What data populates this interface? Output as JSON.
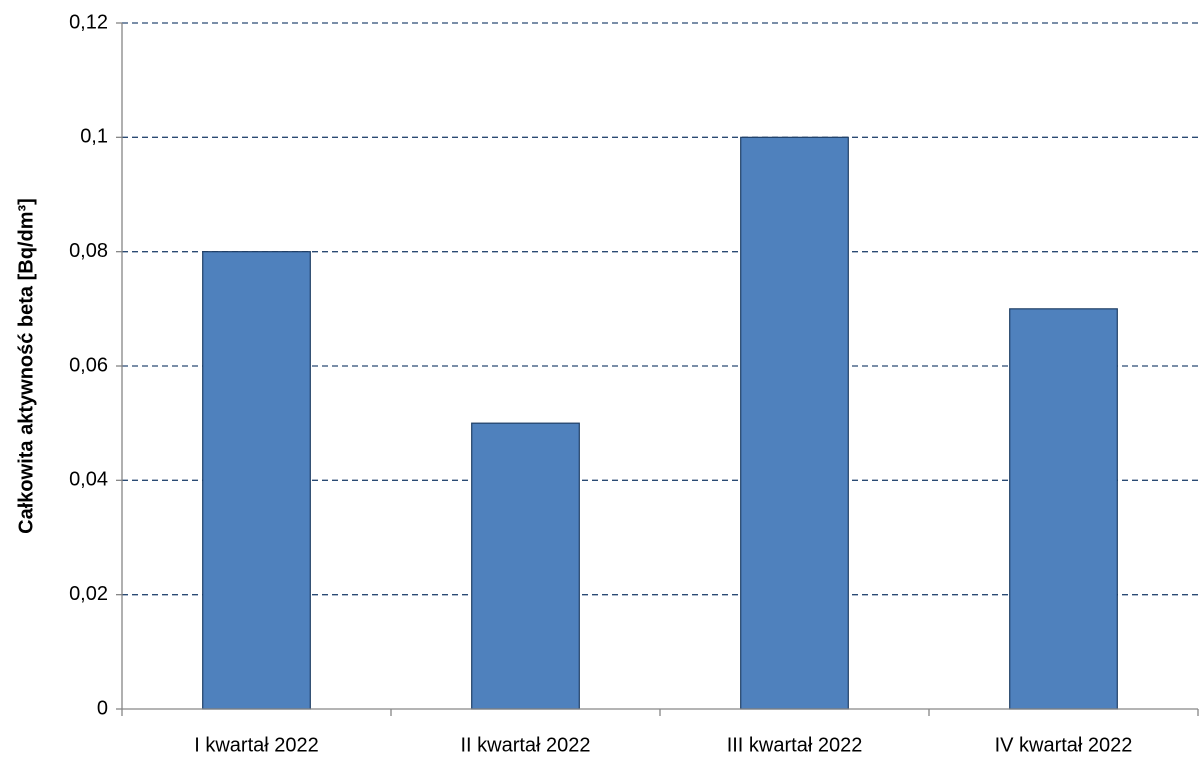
{
  "chart_data": {
    "type": "bar",
    "y_label": "Całkowita aktywność beta [Bq/dm³]",
    "categories": [
      "I kwartał 2022",
      "II kwartał 2022",
      "III kwartał 2022",
      "IV kwartał 2022"
    ],
    "values": [
      0.08,
      0.05,
      0.1,
      0.07
    ],
    "color": "#4f81bd",
    "ylim": [
      0,
      0.12
    ],
    "yticks": [
      0,
      {
        "value": 0.02,
        "label": "0,02"
      },
      {
        "value": 0.04,
        "label": "0,04"
      },
      {
        "value": 0.06,
        "label": "0,06"
      },
      {
        "value": 0.08,
        "label": "0,08"
      },
      {
        "value": 0.1,
        "label": "0,1"
      },
      {
        "value": 0.12,
        "label": "0,12"
      }
    ],
    "grid": true
  }
}
